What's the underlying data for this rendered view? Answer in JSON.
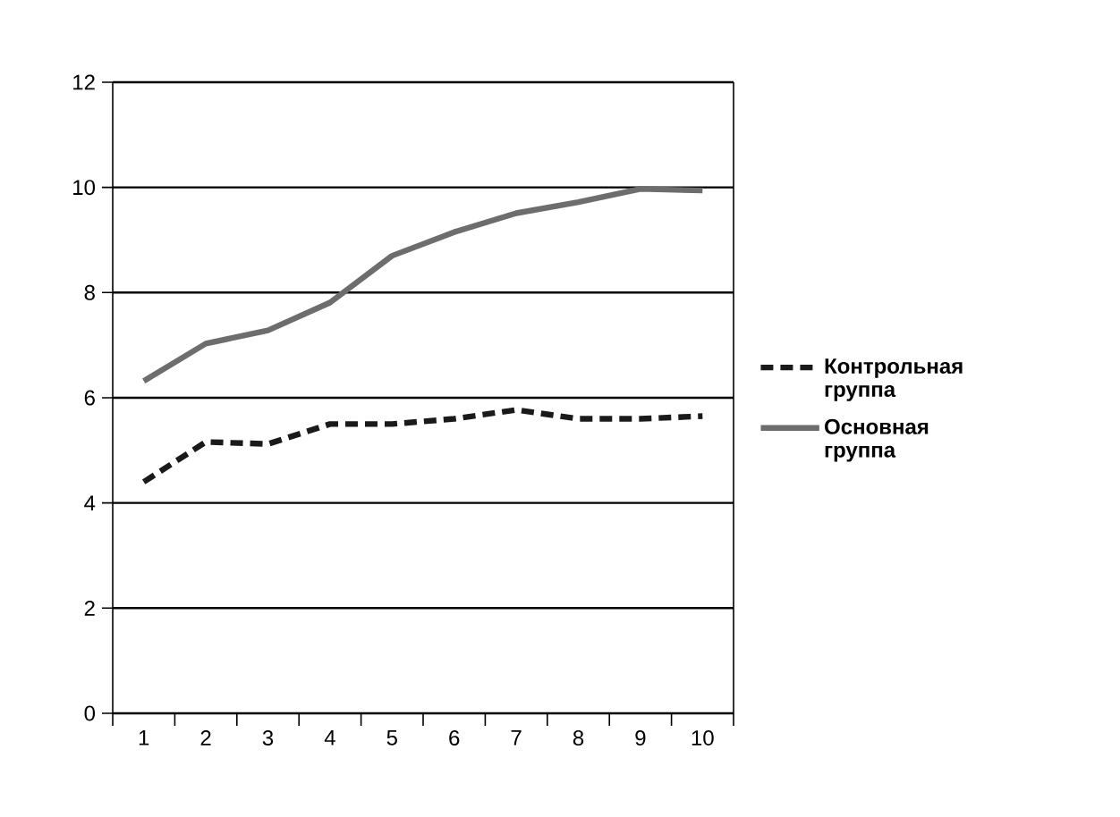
{
  "chart_data": {
    "type": "line",
    "categories": [
      "1",
      "2",
      "3",
      "4",
      "5",
      "6",
      "7",
      "8",
      "9",
      "10"
    ],
    "series": [
      {
        "name": "Контрольная группа",
        "color": "#1a1a1a",
        "line_style": "dashed",
        "values": [
          4.4,
          5.16,
          5.12,
          5.5,
          5.5,
          5.6,
          5.77,
          5.6,
          5.6,
          5.65
        ]
      },
      {
        "name": "Основная группа",
        "color": "#6d6d70",
        "line_style": "solid",
        "values": [
          6.32,
          7.03,
          7.28,
          7.81,
          8.7,
          9.15,
          9.51,
          9.72,
          9.97,
          9.94
        ]
      }
    ],
    "ylim": [
      0,
      12
    ],
    "yticks": [
      0,
      2,
      4,
      6,
      8,
      10,
      12
    ],
    "grid": "y",
    "legend": "right",
    "marker": "none"
  }
}
